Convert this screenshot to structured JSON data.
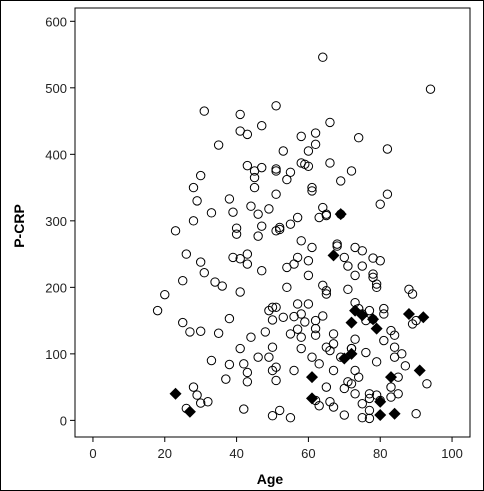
{
  "chart_data": {
    "type": "scatter",
    "title": "",
    "xlabel": "Age",
    "ylabel": "P-CRP",
    "xlim": [
      -5,
      105
    ],
    "ylim": [
      -25,
      620
    ],
    "xticks": [
      0,
      20,
      40,
      60,
      80,
      100
    ],
    "yticks": [
      0,
      100,
      200,
      300,
      400,
      500,
      600
    ],
    "grid": false,
    "legend": "none",
    "colors": {
      "circle_stroke": "#000000",
      "diamond_fill": "#000000",
      "axis": "#000000",
      "frame": "#000000"
    },
    "series": [
      {
        "marker": "open-circle",
        "points": [
          [
            18,
            165
          ],
          [
            20,
            189
          ],
          [
            23,
            285
          ],
          [
            25,
            210
          ],
          [
            25,
            147
          ],
          [
            26,
            250
          ],
          [
            26,
            18
          ],
          [
            27,
            133
          ],
          [
            28,
            50
          ],
          [
            28,
            300
          ],
          [
            28,
            350
          ],
          [
            29,
            38
          ],
          [
            29,
            330
          ],
          [
            30,
            134
          ],
          [
            30,
            238
          ],
          [
            30,
            368
          ],
          [
            30,
            26
          ],
          [
            31,
            222
          ],
          [
            31,
            465
          ],
          [
            32,
            28
          ],
          [
            33,
            90
          ],
          [
            33,
            312
          ],
          [
            34,
            208
          ],
          [
            35,
            131
          ],
          [
            35,
            414
          ],
          [
            36,
            202
          ],
          [
            37,
            62
          ],
          [
            38,
            153
          ],
          [
            38,
            84
          ],
          [
            38,
            333
          ],
          [
            39,
            313
          ],
          [
            39,
            245
          ],
          [
            40,
            280
          ],
          [
            40,
            289
          ],
          [
            41,
            435
          ],
          [
            41,
            193
          ],
          [
            41,
            243
          ],
          [
            41,
            460
          ],
          [
            41,
            108
          ],
          [
            42,
            17
          ],
          [
            42,
            85
          ],
          [
            43,
            383
          ],
          [
            43,
            250
          ],
          [
            43,
            235
          ],
          [
            43,
            430
          ],
          [
            43,
            72
          ],
          [
            43,
            58
          ],
          [
            44,
            125
          ],
          [
            44,
            322
          ],
          [
            45,
            375
          ],
          [
            45,
            365
          ],
          [
            45,
            350
          ],
          [
            46,
            95
          ],
          [
            46,
            310
          ],
          [
            46,
            277
          ],
          [
            47,
            443
          ],
          [
            47,
            380
          ],
          [
            47,
            225
          ],
          [
            47,
            292
          ],
          [
            48,
            133
          ],
          [
            49,
            165
          ],
          [
            49,
            95
          ],
          [
            49,
            318
          ],
          [
            50,
            110
          ],
          [
            50,
            75
          ],
          [
            50,
            7
          ],
          [
            50,
            170
          ],
          [
            50,
            151
          ],
          [
            51,
            473
          ],
          [
            51,
            375
          ],
          [
            51,
            378
          ],
          [
            51,
            285
          ],
          [
            51,
            340
          ],
          [
            51,
            80
          ],
          [
            51,
            60
          ],
          [
            51,
            170
          ],
          [
            52,
            290
          ],
          [
            52,
            15
          ],
          [
            52,
            287
          ],
          [
            53,
            405
          ],
          [
            53,
            155
          ],
          [
            54,
            362
          ],
          [
            54,
            230
          ],
          [
            54,
            200
          ],
          [
            55,
            130
          ],
          [
            55,
            295
          ],
          [
            55,
            4
          ],
          [
            55,
            373
          ],
          [
            56,
            235
          ],
          [
            56,
            156
          ],
          [
            56,
            75
          ],
          [
            57,
            137
          ],
          [
            57,
            175
          ],
          [
            57,
            305
          ],
          [
            57,
            245
          ],
          [
            58,
            427
          ],
          [
            58,
            160
          ],
          [
            58,
            108
          ],
          [
            58,
            387
          ],
          [
            58,
            270
          ],
          [
            58,
            125
          ],
          [
            59,
            148
          ],
          [
            59,
            385
          ],
          [
            60,
            405
          ],
          [
            60,
            382
          ],
          [
            60,
            240
          ],
          [
            60,
            218
          ],
          [
            60,
            175
          ],
          [
            61,
            350
          ],
          [
            61,
            345
          ],
          [
            61,
            260
          ],
          [
            61,
            95
          ],
          [
            62,
            30
          ],
          [
            62,
            432
          ],
          [
            62,
            415
          ],
          [
            62,
            150
          ],
          [
            62,
            138
          ],
          [
            62,
            128
          ],
          [
            63,
            305
          ],
          [
            63,
            85
          ],
          [
            63,
            22
          ],
          [
            64,
            546
          ],
          [
            64,
            320
          ],
          [
            64,
            203
          ],
          [
            64,
            157
          ],
          [
            65,
            310
          ],
          [
            65,
            308
          ],
          [
            65,
            195
          ],
          [
            65,
            190
          ],
          [
            65,
            110
          ],
          [
            65,
            50
          ],
          [
            66,
            448
          ],
          [
            66,
            387
          ],
          [
            66,
            28
          ],
          [
            66,
            105
          ],
          [
            67,
            130
          ],
          [
            67,
            115
          ],
          [
            67,
            75
          ],
          [
            67,
            20
          ],
          [
            68,
            265
          ],
          [
            68,
            262
          ],
          [
            69,
            310
          ],
          [
            69,
            95
          ],
          [
            69,
            360
          ],
          [
            70,
            245
          ],
          [
            70,
            48
          ],
          [
            70,
            8
          ],
          [
            71,
            232
          ],
          [
            71,
            197
          ],
          [
            71,
            58
          ],
          [
            72,
            375
          ],
          [
            72,
            108
          ],
          [
            72,
            55
          ],
          [
            72,
            108
          ],
          [
            73,
            260
          ],
          [
            73,
            218
          ],
          [
            73,
            177
          ],
          [
            73,
            122
          ],
          [
            73,
            75
          ],
          [
            73,
            40
          ],
          [
            74,
            425
          ],
          [
            74,
            168
          ],
          [
            74,
            65
          ],
          [
            75,
            232
          ],
          [
            75,
            255
          ],
          [
            75,
            160
          ],
          [
            75,
            25
          ],
          [
            75,
            4
          ],
          [
            76,
            150
          ],
          [
            76,
            102
          ],
          [
            77,
            165
          ],
          [
            77,
            40
          ],
          [
            77,
            33
          ],
          [
            77,
            15
          ],
          [
            77,
            3
          ],
          [
            78,
            244
          ],
          [
            78,
            215
          ],
          [
            78,
            220
          ],
          [
            78,
            152
          ],
          [
            79,
            205
          ],
          [
            79,
            200
          ],
          [
            79,
            88
          ],
          [
            79,
            38
          ],
          [
            80,
            240
          ],
          [
            80,
            325
          ],
          [
            80,
            30
          ],
          [
            81,
            168
          ],
          [
            81,
            160
          ],
          [
            81,
            120
          ],
          [
            82,
            340
          ],
          [
            82,
            408
          ],
          [
            83,
            135
          ],
          [
            83,
            50
          ],
          [
            83,
            35
          ],
          [
            84,
            110
          ],
          [
            84,
            95
          ],
          [
            84,
            128
          ],
          [
            85,
            65
          ],
          [
            85,
            40
          ],
          [
            86,
            100
          ],
          [
            87,
            82
          ],
          [
            88,
            197
          ],
          [
            89,
            190
          ],
          [
            89,
            145
          ],
          [
            90,
            150
          ],
          [
            90,
            10
          ],
          [
            93,
            55
          ],
          [
            94,
            498
          ]
        ]
      },
      {
        "marker": "filled-diamond",
        "points": [
          [
            23,
            40
          ],
          [
            27,
            13
          ],
          [
            61,
            65
          ],
          [
            61,
            33
          ],
          [
            67,
            248
          ],
          [
            69,
            310
          ],
          [
            70,
            93
          ],
          [
            72,
            147
          ],
          [
            72,
            100
          ],
          [
            73,
            165
          ],
          [
            75,
            158
          ],
          [
            78,
            152
          ],
          [
            79,
            138
          ],
          [
            80,
            28
          ],
          [
            80,
            8
          ],
          [
            83,
            65
          ],
          [
            84,
            10
          ],
          [
            88,
            160
          ],
          [
            91,
            75
          ],
          [
            92,
            155
          ]
        ]
      }
    ]
  }
}
